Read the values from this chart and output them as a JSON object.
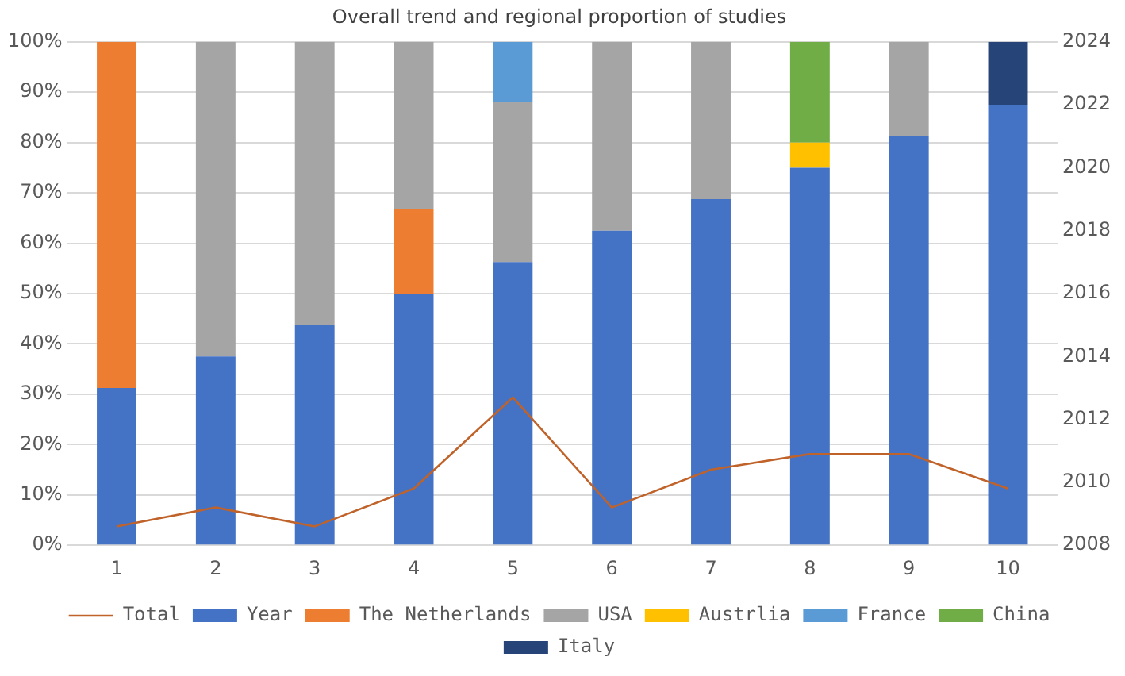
{
  "chart_data": {
    "type": "bar",
    "title": "Overall trend and regional proportion of studies",
    "categories": [
      "1",
      "2",
      "3",
      "4",
      "5",
      "6",
      "7",
      "8",
      "9",
      "10"
    ],
    "stacked": true,
    "series": [
      {
        "name": "Year",
        "color": "#4472c4",
        "values": [
          31.25,
          37.5,
          43.75,
          50,
          56.25,
          62.5,
          68.75,
          75,
          81.25,
          87.5
        ]
      },
      {
        "name": "The Netherlands",
        "color": "#ed7d31",
        "values": [
          68.75,
          null,
          null,
          16.7,
          null,
          null,
          null,
          null,
          null,
          null
        ]
      },
      {
        "name": "USA",
        "color": "#a5a5a5",
        "values": [
          null,
          62.5,
          56.25,
          33.3,
          31.75,
          37.5,
          31.25,
          null,
          18.75,
          null
        ]
      },
      {
        "name": "Austrlia",
        "color": "#ffc000",
        "values": [
          null,
          null,
          null,
          null,
          null,
          null,
          null,
          5,
          null,
          null
        ]
      },
      {
        "name": "France",
        "color": "#5b9bd5",
        "values": [
          null,
          null,
          null,
          null,
          12,
          null,
          null,
          null,
          null,
          null
        ]
      },
      {
        "name": "China",
        "color": "#70ad47",
        "values": [
          null,
          null,
          null,
          null,
          null,
          null,
          null,
          20,
          null,
          null
        ]
      },
      {
        "name": "Italy",
        "color": "#264478",
        "values": [
          null,
          null,
          null,
          null,
          null,
          null,
          null,
          null,
          null,
          12.5
        ]
      },
      {
        "name": "Total",
        "type": "line",
        "axis": "y2",
        "color": "#c0632b",
        "values": [
          2008.6,
          2009.2,
          2008.6,
          2009.8,
          2012.7,
          2009.2,
          2010.4,
          2010.9,
          2010.9,
          2009.8
        ]
      }
    ],
    "ylim": [
      0,
      100
    ],
    "yticks": [
      {
        "value": 0,
        "label": "0%"
      },
      {
        "value": 10,
        "label": "10%"
      },
      {
        "value": 20,
        "label": "20%"
      },
      {
        "value": 30,
        "label": "30%"
      },
      {
        "value": 40,
        "label": "40%"
      },
      {
        "value": 50,
        "label": "50%"
      },
      {
        "value": 60,
        "label": "60%"
      },
      {
        "value": 70,
        "label": "70%"
      },
      {
        "value": 80,
        "label": "80%"
      },
      {
        "value": 90,
        "label": "90%"
      },
      {
        "value": 100,
        "label": "100%"
      }
    ],
    "y2lim": [
      2008,
      2024
    ],
    "y2ticks": [
      2008,
      2010,
      2012,
      2014,
      2016,
      2018,
      2020,
      2022,
      2024
    ],
    "grid": "y",
    "legend": "bottom",
    "marker": "none"
  }
}
